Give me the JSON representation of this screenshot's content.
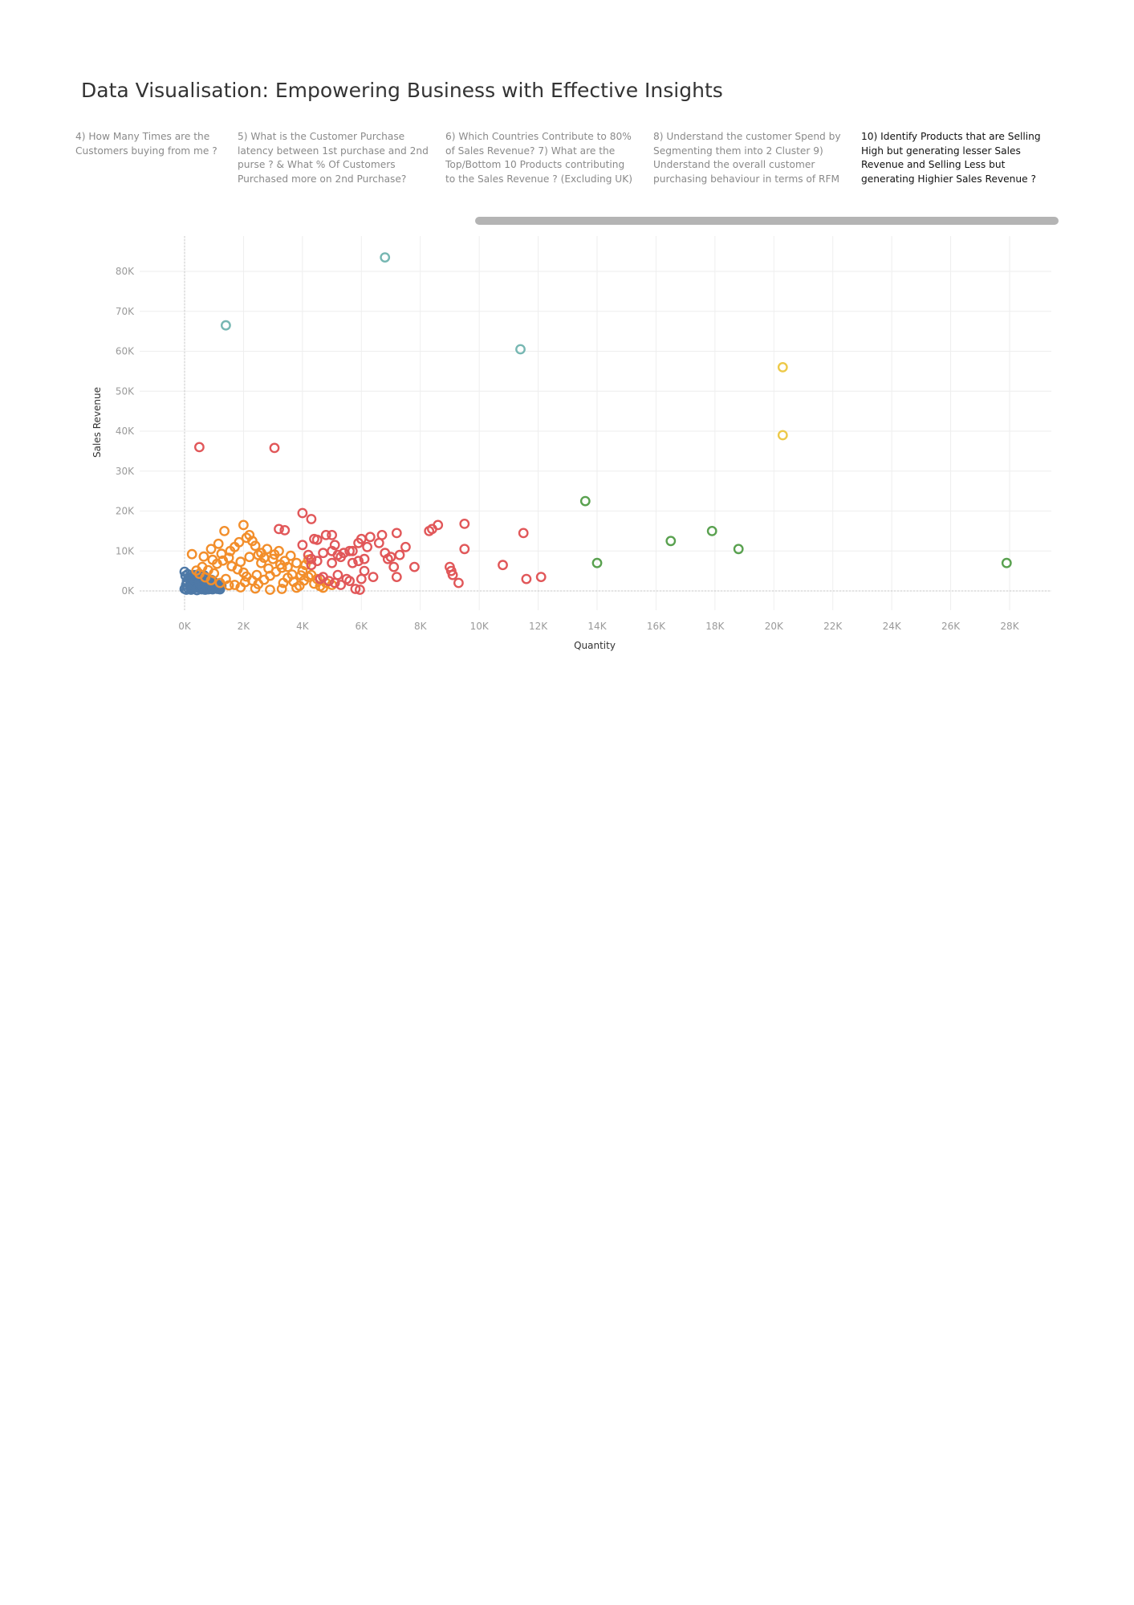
{
  "page": {
    "title": "Data Visualisation: Empowering Business with Effective Insights"
  },
  "tabs": [
    {
      "label": "4) How Many Times are the Customers buying from me ?",
      "active": false
    },
    {
      "label": "5) What is the Customer Purchase latency between 1st purchase and 2nd purse ? & What % Of Customers Purchased more on 2nd Purchase?",
      "active": false
    },
    {
      "label": "6) Which Countries Contribute to 80% of Sales Revenue?   7) What are the Top/Bottom 10 Products contributing to the Sales Revenue ? (Excluding UK)",
      "active": false
    },
    {
      "label": "8) Understand the customer Spend by Segmenting them into 2 Cluster   9) Understand the overall customer purchasing behaviour  in terms of RFM",
      "active": false
    },
    {
      "label": "10) Identify Products that are Selling High but generating lesser Sales Revenue and Selling Less but generating Highier Sales Revenue ?",
      "active": true
    }
  ],
  "chart_data": {
    "type": "scatter",
    "xlabel": "Quantity",
    "ylabel": "Sales Revenue",
    "xlim": [
      -1500,
      29500
    ],
    "ylim": [
      -5000,
      89000
    ],
    "xticks": [
      0,
      2000,
      4000,
      6000,
      8000,
      10000,
      12000,
      14000,
      16000,
      18000,
      20000,
      22000,
      24000,
      26000,
      28000
    ],
    "xtick_labels": [
      "0K",
      "2K",
      "4K",
      "6K",
      "8K",
      "10K",
      "12K",
      "14K",
      "16K",
      "18K",
      "20K",
      "22K",
      "24K",
      "26K",
      "28K"
    ],
    "yticks": [
      0,
      10000,
      20000,
      30000,
      40000,
      50000,
      60000,
      70000,
      80000
    ],
    "ytick_labels": [
      "0K",
      "10K",
      "20K",
      "30K",
      "40K",
      "50K",
      "60K",
      "70K",
      "80K"
    ],
    "grid": true,
    "marker": "hollow-circle",
    "series": [
      {
        "color": "#4e79a7",
        "points": [
          [
            0,
            500
          ],
          [
            0,
            4800
          ],
          [
            50,
            1500
          ],
          [
            80,
            2500
          ],
          [
            100,
            800
          ],
          [
            150,
            3500
          ],
          [
            180,
            1200
          ],
          [
            200,
            2000
          ],
          [
            220,
            300
          ],
          [
            250,
            3000
          ],
          [
            280,
            1800
          ],
          [
            300,
            600
          ],
          [
            320,
            2600
          ],
          [
            350,
            4000
          ],
          [
            380,
            1000
          ],
          [
            400,
            2200
          ],
          [
            420,
            200
          ],
          [
            450,
            3300
          ],
          [
            480,
            1500
          ],
          [
            500,
            800
          ],
          [
            520,
            2800
          ],
          [
            550,
            1200
          ],
          [
            580,
            400
          ],
          [
            600,
            3600
          ],
          [
            620,
            1900
          ],
          [
            650,
            900
          ],
          [
            680,
            2500
          ],
          [
            700,
            300
          ],
          [
            720,
            1600
          ],
          [
            750,
            3100
          ],
          [
            780,
            700
          ],
          [
            800,
            2100
          ],
          [
            820,
            1300
          ],
          [
            850,
            500
          ],
          [
            880,
            2700
          ],
          [
            900,
            1000
          ],
          [
            920,
            1800
          ],
          [
            950,
            400
          ],
          [
            980,
            2300
          ],
          [
            1000,
            1100
          ],
          [
            1050,
            600
          ],
          [
            1100,
            1700
          ],
          [
            1150,
            900
          ],
          [
            1200,
            400
          ],
          [
            1250,
            1300
          ],
          [
            30,
            3800
          ],
          [
            60,
            300
          ],
          [
            110,
            4200
          ],
          [
            160,
            2900
          ],
          [
            210,
            1000
          ],
          [
            260,
            500
          ],
          [
            310,
            1400
          ],
          [
            360,
            2400
          ],
          [
            410,
            3800
          ],
          [
            460,
            700
          ],
          [
            510,
            1900
          ],
          [
            560,
            2900
          ],
          [
            610,
            1100
          ],
          [
            660,
            3900
          ],
          [
            710,
            2100
          ],
          [
            760,
            1100
          ],
          [
            810,
            400
          ],
          [
            860,
            1800
          ],
          [
            910,
            2800
          ],
          [
            960,
            700
          ],
          [
            1010,
            2000
          ],
          [
            1060,
            1300
          ],
          [
            1110,
            500
          ],
          [
            1160,
            1500
          ],
          [
            1210,
            900
          ]
        ]
      },
      {
        "color": "#f28e2b",
        "points": [
          [
            250,
            9200
          ],
          [
            900,
            10500
          ],
          [
            1350,
            15000
          ],
          [
            2000,
            16500
          ],
          [
            2200,
            14000
          ],
          [
            2300,
            12500
          ],
          [
            1700,
            11000
          ],
          [
            2500,
            9000
          ],
          [
            2800,
            10500
          ],
          [
            3200,
            10000
          ],
          [
            3000,
            8000
          ],
          [
            2600,
            7000
          ],
          [
            3500,
            6000
          ],
          [
            4000,
            5000
          ],
          [
            4300,
            4000
          ],
          [
            4500,
            3000
          ],
          [
            4800,
            2000
          ],
          [
            5000,
            1500
          ],
          [
            4600,
            1200
          ],
          [
            3800,
            800
          ],
          [
            3300,
            500
          ],
          [
            2900,
            300
          ],
          [
            2400,
            600
          ],
          [
            1900,
            900
          ],
          [
            1500,
            1400
          ],
          [
            1200,
            2000
          ],
          [
            900,
            2700
          ],
          [
            700,
            3400
          ],
          [
            500,
            4300
          ],
          [
            400,
            5100
          ],
          [
            600,
            6000
          ],
          [
            800,
            5200
          ],
          [
            1000,
            4400
          ],
          [
            1100,
            6800
          ],
          [
            1300,
            7600
          ],
          [
            1500,
            8300
          ],
          [
            1600,
            6200
          ],
          [
            1800,
            5400
          ],
          [
            2000,
            4600
          ],
          [
            2100,
            3600
          ],
          [
            2300,
            2600
          ],
          [
            2500,
            1700
          ],
          [
            2700,
            2800
          ],
          [
            2900,
            3800
          ],
          [
            3100,
            4800
          ],
          [
            3300,
            5800
          ],
          [
            3500,
            3300
          ],
          [
            3700,
            2300
          ],
          [
            3900,
            1300
          ],
          [
            4100,
            6500
          ],
          [
            4200,
            3500
          ],
          [
            2200,
            8500
          ],
          [
            2600,
            9500
          ],
          [
            3400,
            7500
          ],
          [
            3600,
            8800
          ],
          [
            1400,
            3000
          ],
          [
            1700,
            1500
          ],
          [
            2050,
            2200
          ],
          [
            2450,
            4000
          ],
          [
            2850,
            5600
          ],
          [
            3250,
            6600
          ],
          [
            3650,
            4100
          ],
          [
            4050,
            2600
          ],
          [
            4400,
            1800
          ],
          [
            1900,
            7300
          ],
          [
            1250,
            9300
          ],
          [
            1550,
            10000
          ],
          [
            1850,
            12200
          ],
          [
            2100,
            13300
          ],
          [
            2400,
            11300
          ],
          [
            3050,
            9100
          ],
          [
            3800,
            7000
          ],
          [
            4200,
            7800
          ],
          [
            950,
            7800
          ],
          [
            650,
            8600
          ],
          [
            1150,
            11800
          ],
          [
            2700,
            8300
          ],
          [
            3350,
            2000
          ],
          [
            3950,
            3900
          ],
          [
            4700,
            800
          ]
        ]
      },
      {
        "color": "#e15759",
        "points": [
          [
            500,
            36000
          ],
          [
            3050,
            35800
          ],
          [
            4000,
            19500
          ],
          [
            4300,
            18000
          ],
          [
            3200,
            15500
          ],
          [
            3400,
            15200
          ],
          [
            4400,
            13000
          ],
          [
            4500,
            12800
          ],
          [
            4800,
            14000
          ],
          [
            5000,
            14000
          ],
          [
            4000,
            11500
          ],
          [
            4200,
            9000
          ],
          [
            4300,
            8000
          ],
          [
            4500,
            7500
          ],
          [
            4700,
            9500
          ],
          [
            5000,
            10000
          ],
          [
            5100,
            11500
          ],
          [
            5200,
            9000
          ],
          [
            5300,
            8500
          ],
          [
            5600,
            10000
          ],
          [
            5700,
            10000
          ],
          [
            5900,
            12000
          ],
          [
            6000,
            13000
          ],
          [
            6200,
            11000
          ],
          [
            6300,
            13500
          ],
          [
            6600,
            12000
          ],
          [
            6700,
            14000
          ],
          [
            6800,
            9500
          ],
          [
            6900,
            8000
          ],
          [
            7000,
            8500
          ],
          [
            7100,
            6000
          ],
          [
            7200,
            14500
          ],
          [
            7300,
            9000
          ],
          [
            7500,
            11000
          ],
          [
            7800,
            6000
          ],
          [
            8300,
            15000
          ],
          [
            8400,
            15500
          ],
          [
            8600,
            16500
          ],
          [
            9000,
            6000
          ],
          [
            9050,
            5000
          ],
          [
            9100,
            4000
          ],
          [
            9300,
            2000
          ],
          [
            9500,
            16800
          ],
          [
            9500,
            10500
          ],
          [
            10800,
            6500
          ],
          [
            11500,
            14500
          ],
          [
            11600,
            3000
          ],
          [
            12100,
            3500
          ],
          [
            4600,
            3000
          ],
          [
            4900,
            2500
          ],
          [
            5200,
            4000
          ],
          [
            5500,
            3000
          ],
          [
            5800,
            500
          ],
          [
            6000,
            3000
          ],
          [
            5900,
            7500
          ],
          [
            5700,
            7000
          ],
          [
            6100,
            8000
          ],
          [
            5400,
            9500
          ],
          [
            7200,
            3500
          ],
          [
            6400,
            3500
          ],
          [
            5000,
            7000
          ],
          [
            4300,
            6500
          ],
          [
            5100,
            2000
          ],
          [
            4700,
            3500
          ],
          [
            5950,
            300
          ],
          [
            5300,
            1500
          ],
          [
            6100,
            5000
          ],
          [
            5600,
            2500
          ]
        ]
      },
      {
        "color": "#76b7b2",
        "points": [
          [
            1400,
            66500
          ],
          [
            6800,
            83500
          ],
          [
            11400,
            60500
          ]
        ]
      },
      {
        "color": "#59a14f",
        "points": [
          [
            13600,
            22500
          ],
          [
            14000,
            7000
          ],
          [
            16500,
            12500
          ],
          [
            17900,
            15000
          ],
          [
            18800,
            10500
          ],
          [
            27900,
            7000
          ]
        ]
      },
      {
        "color": "#edc948",
        "points": [
          [
            20300,
            56000
          ],
          [
            20300,
            39000
          ]
        ]
      }
    ]
  }
}
